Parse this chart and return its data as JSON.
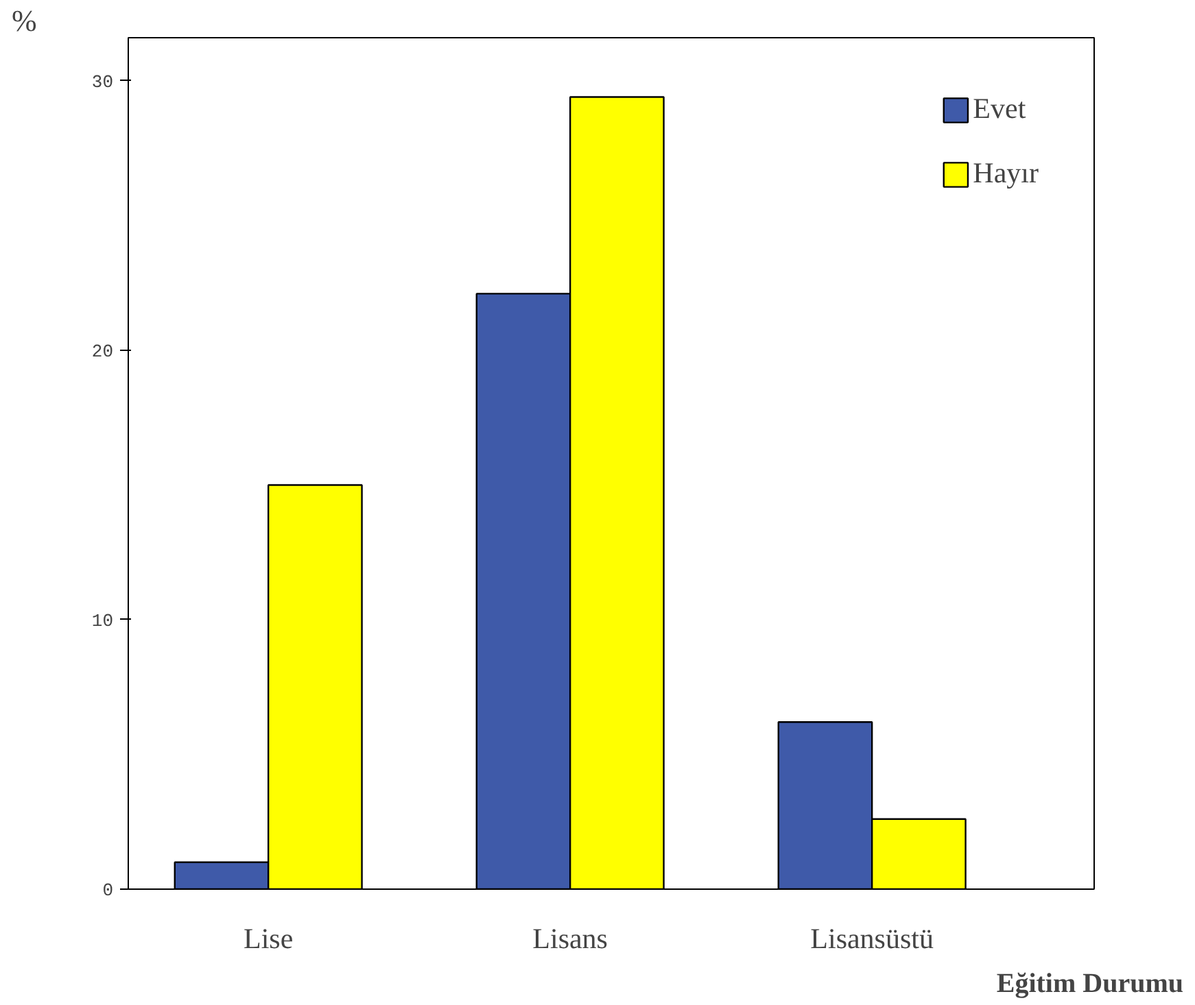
{
  "chart_data": {
    "type": "bar",
    "ylabel": "%",
    "xlabel": "Eğitim Durumu",
    "categories": [
      "Lise",
      "Lisans",
      "Lisansüstü"
    ],
    "series": [
      {
        "name": "Evet",
        "color": "#3f5aa9",
        "values": [
          1.0,
          22.1,
          6.2
        ]
      },
      {
        "name": "Hayır",
        "color": "#ffff00",
        "values": [
          15.0,
          29.4,
          2.6
        ]
      }
    ],
    "ylim": [
      0,
      31.6
    ],
    "yticks": [
      0,
      10,
      20,
      30
    ],
    "grid": false,
    "legend": "top right"
  }
}
